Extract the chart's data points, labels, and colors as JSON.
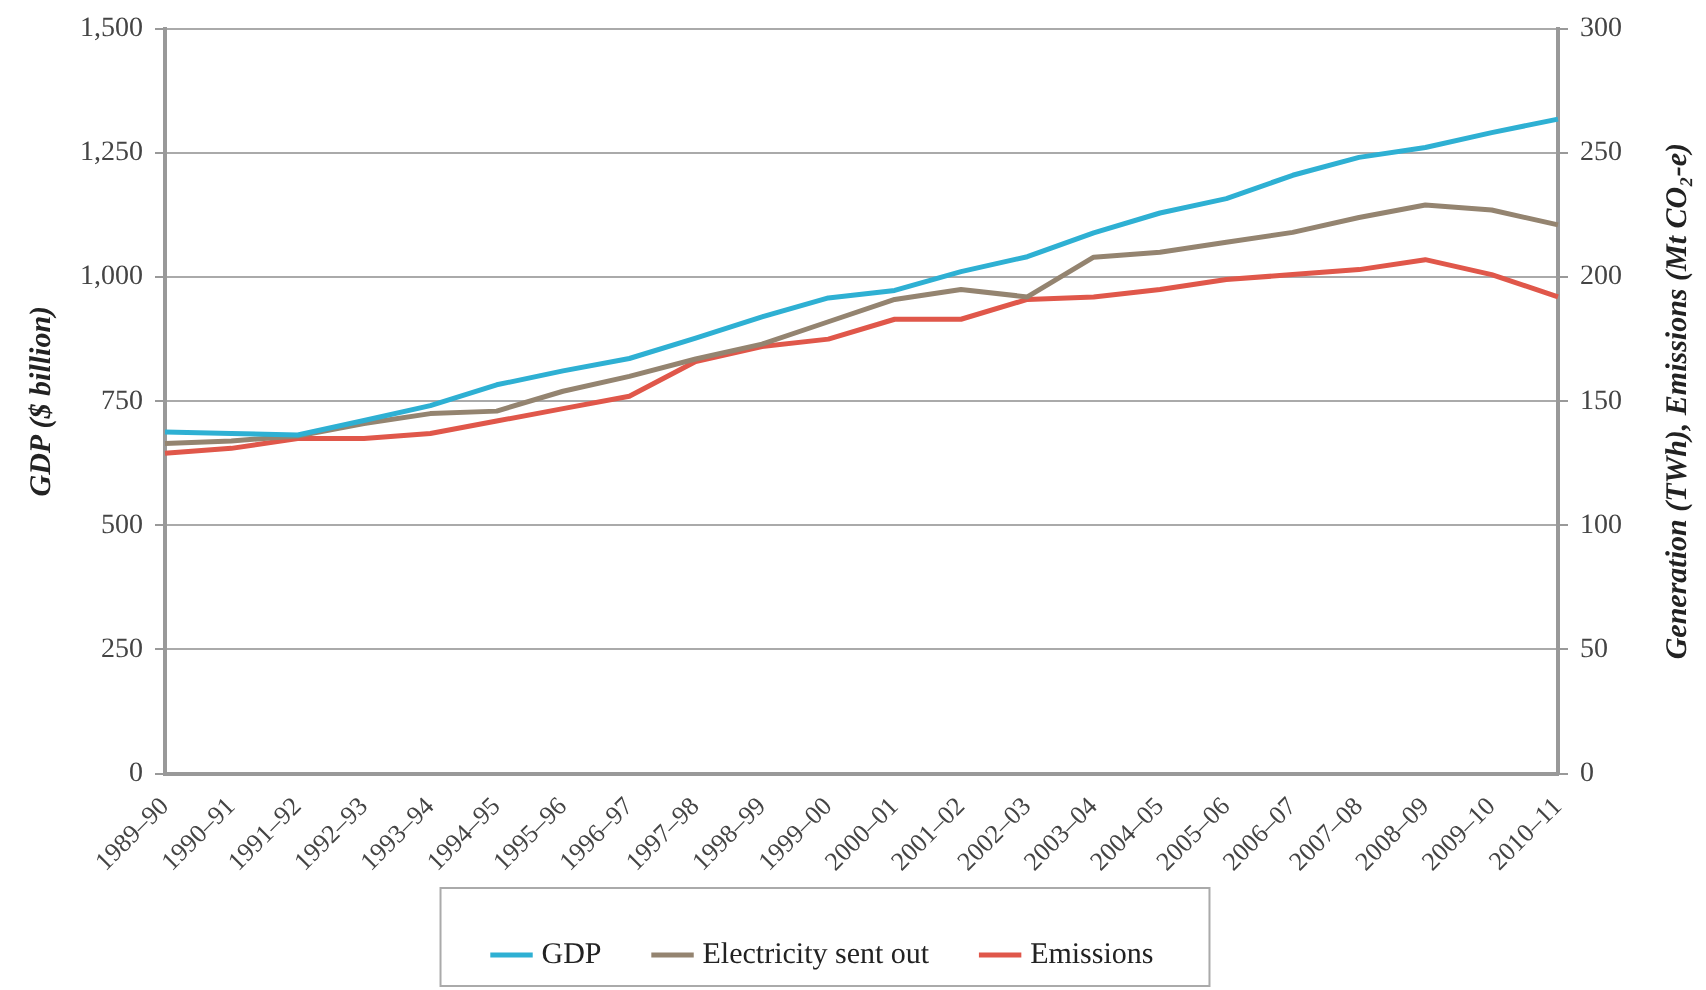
{
  "chart_data": {
    "type": "line",
    "ylabel": "GDP ($ billion)",
    "y2label": "Generation (TWh), Emissions (Mt CO₂-e)",
    "categories": [
      "1989–90",
      "1990–91",
      "1991–92",
      "1992–93",
      "1993–94",
      "1994–95",
      "1995–96",
      "1996–97",
      "1997–98",
      "1998–99",
      "1999–00",
      "2000–01",
      "2001–02",
      "2002–03",
      "2003–04",
      "2004–05",
      "2005–06",
      "2006–07",
      "2007–08",
      "2008–09",
      "2009–10",
      "2010–11"
    ],
    "series": [
      {
        "name": "GDP",
        "color": "#2eb0d3",
        "values": [
          688,
          685,
          682,
          711,
          741,
          783,
          811,
          836,
          877,
          920,
          958,
          973,
          1011,
          1041,
          1089,
          1129,
          1158,
          1205,
          1241,
          1261,
          1291,
          1318
        ]
      },
      {
        "name": "Electricity sent out",
        "color": "#948470",
        "axis": "y2",
        "values": [
          133,
          134,
          136,
          141,
          145,
          146,
          154,
          160,
          167,
          173,
          182,
          191,
          195,
          192,
          208,
          210,
          214,
          218,
          224,
          229,
          227,
          221
        ]
      },
      {
        "name": "Emissions",
        "color": "#e0574a",
        "axis": "y2",
        "values": [
          129,
          131,
          135,
          135,
          137,
          142,
          147,
          152,
          166,
          172,
          175,
          183,
          183,
          191,
          192,
          195,
          199,
          201,
          203,
          207,
          201,
          192
        ]
      }
    ],
    "ylim": [
      0,
      1500
    ],
    "yticks": [
      {
        "value": 0,
        "label": "0"
      },
      {
        "value": 250,
        "label": "250"
      },
      {
        "value": 500,
        "label": "500"
      },
      {
        "value": 750,
        "label": "750"
      },
      {
        "value": 1000,
        "label": "1,000"
      },
      {
        "value": 1250,
        "label": "1,250"
      },
      {
        "value": 1500,
        "label": "1,500"
      }
    ],
    "y2lim": [
      0,
      300
    ],
    "y2ticks": [
      0,
      50,
      100,
      150,
      200,
      250,
      300
    ],
    "grid": "y",
    "legend": "bottom",
    "marker": "none",
    "line_style": "solid"
  }
}
